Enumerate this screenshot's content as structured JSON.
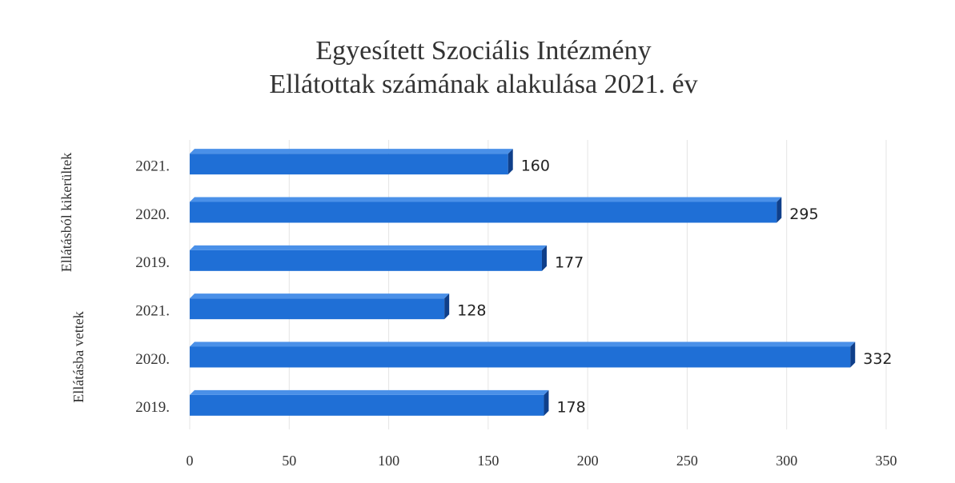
{
  "chart_data": {
    "type": "bar",
    "orientation": "horizontal",
    "title": "Egyesített Szociális Intézmény",
    "subtitle": "Ellátottak számának alakulása 2021. év",
    "series": [
      {
        "name": "Ellátásból kikerültek",
        "color": "#1f6fd6",
        "categories": [
          "2021.",
          "2020.",
          "2019."
        ],
        "values": [
          160,
          295,
          177
        ]
      },
      {
        "name": "Ellátásba vettek",
        "color": "#1f6fd6",
        "categories": [
          "2021.",
          "2020.",
          "2019."
        ],
        "values": [
          128,
          332,
          178
        ]
      }
    ],
    "xlim": [
      0,
      350
    ],
    "xticks": [
      0,
      50,
      100,
      150,
      200,
      250,
      300,
      350
    ],
    "grid": true,
    "data_labels": true
  }
}
